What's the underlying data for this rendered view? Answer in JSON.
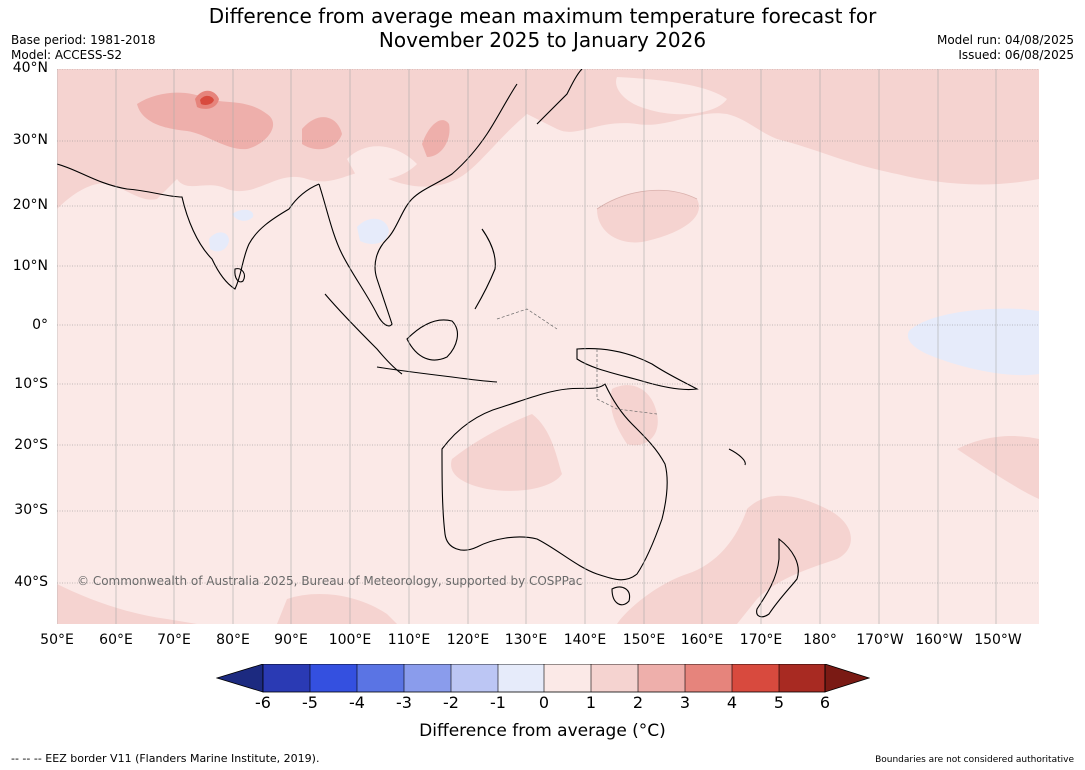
{
  "title_line1": "Difference from average mean maximum temperature forecast for",
  "title_line2": "November 2025 to January 2026",
  "base_period": "Base period: 1981-2018",
  "model": "Model: ACCESS-S2",
  "model_run": "Model run: 04/08/2025",
  "issued": "Issued: 06/08/2025",
  "lat_labels": [
    "40°N",
    "30°N",
    "20°N",
    "10°N",
    "0°",
    "10°S",
    "20°S",
    "30°S",
    "40°S"
  ],
  "lon_labels": [
    "50°E",
    "60°E",
    "70°E",
    "80°E",
    "90°E",
    "100°E",
    "110°E",
    "120°E",
    "130°E",
    "140°E",
    "150°E",
    "160°E",
    "170°E",
    "180°",
    "170°W",
    "160°W",
    "150°W"
  ],
  "copyright": "© Commonwealth of Australia 2025, Bureau of Meteorology, supported by COSPPac",
  "colorbar": {
    "ticks": [
      "-6",
      "-5",
      "-4",
      "-3",
      "-2",
      "-1",
      "0",
      "1",
      "2",
      "3",
      "4",
      "5",
      "6"
    ],
    "label": "Difference from average (°C)",
    "colors": [
      "#1c2a80",
      "#2a3ab4",
      "#3450e0",
      "#5a74e4",
      "#8a9cec",
      "#bcc6f4",
      "#e6ebfa",
      "#fbe9e7",
      "#f5d3d0",
      "#eeafab",
      "#e6847c",
      "#d84a3e",
      "#a82a22",
      "#7a1a14"
    ]
  },
  "footer_left": "-- -- -- EEZ border V11 (Flanders Marine Institute, 2019).",
  "footer_right": "Boundaries are not considered authoritative"
}
